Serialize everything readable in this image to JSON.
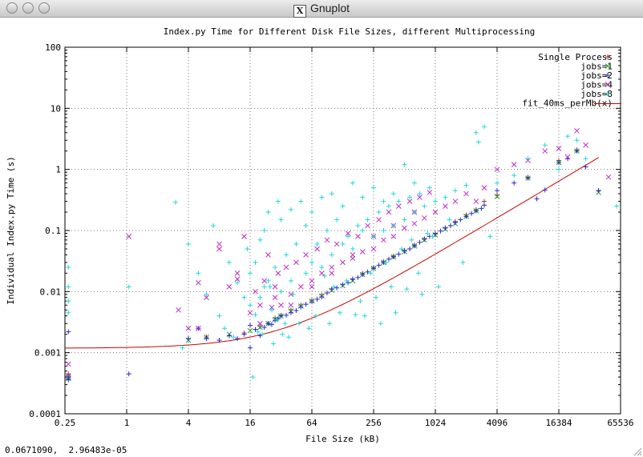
{
  "window": {
    "title": "Gnuplot",
    "icon": "x11-icon"
  },
  "status": {
    "coords": "0.0671090,  2.96483e-05"
  },
  "chart_data": {
    "type": "scatter",
    "title": "Index.py Time for Different Disk File Sizes, different Multiprocessing",
    "xlabel": "File Size (kB)",
    "ylabel": "Individual Index.py Time (s)",
    "xscale": "log",
    "yscale": "log",
    "xlim": [
      0.25,
      65536
    ],
    "ylim": [
      0.0001,
      100
    ],
    "grid": true,
    "legend": "top-right",
    "xticks": [
      0.25,
      1,
      4,
      16,
      64,
      256,
      1024,
      4096,
      16384,
      65536
    ],
    "xtick_labels": [
      "0.25",
      "1",
      "4",
      "16",
      "64",
      "256",
      "1024",
      "4096",
      "16384",
      "65536"
    ],
    "yticks": [
      0.0001,
      0.001,
      0.01,
      0.1,
      1,
      10,
      100
    ],
    "ytick_labels": [
      "0.0001",
      "0.001",
      "0.01",
      "0.1",
      "1",
      "10",
      "100"
    ],
    "series": [
      {
        "name": "Single Process",
        "marker": "plus",
        "color": "#c0302a",
        "x": [
          0.27,
          0.27,
          4,
          6,
          10,
          14,
          18,
          20,
          24,
          28,
          32,
          40,
          50,
          64,
          80,
          100,
          128,
          160,
          200,
          256,
          320,
          400,
          512,
          640,
          800,
          1024,
          1280,
          1600,
          2048,
          2560,
          3072,
          4096,
          8192,
          16384,
          24576,
          40000
        ],
        "y": [
          0.0004,
          0.00045,
          0.0017,
          0.0018,
          0.0019,
          0.0021,
          0.0024,
          0.0027,
          0.003,
          0.0037,
          0.0041,
          0.005,
          0.006,
          0.0072,
          0.0088,
          0.011,
          0.013,
          0.016,
          0.02,
          0.025,
          0.031,
          0.038,
          0.047,
          0.058,
          0.073,
          0.09,
          0.11,
          0.14,
          0.18,
          0.22,
          0.3,
          0.38,
          0.75,
          1.4,
          2.1,
          0.45
        ]
      },
      {
        "name": "jobs=1",
        "marker": "x",
        "color": "#1fa02b",
        "x": [
          0.27,
          0.27,
          4,
          6,
          10,
          16,
          20,
          24,
          28,
          32,
          40,
          50,
          64,
          80,
          100,
          128,
          160,
          200,
          256,
          320,
          400,
          512,
          640,
          800,
          1024,
          1280,
          1600,
          2048,
          2560,
          4096,
          8192,
          16384,
          24576,
          40000
        ],
        "y": [
          0.00038,
          0.0004,
          0.0016,
          0.0018,
          0.002,
          0.0023,
          0.0026,
          0.003,
          0.0035,
          0.004,
          0.0048,
          0.0058,
          0.007,
          0.0085,
          0.0105,
          0.0125,
          0.015,
          0.019,
          0.024,
          0.03,
          0.037,
          0.045,
          0.056,
          0.07,
          0.085,
          0.105,
          0.13,
          0.17,
          0.21,
          0.36,
          0.72,
          1.3,
          2.0,
          0.42
        ]
      },
      {
        "name": "jobs=2",
        "marker": "plus",
        "color": "#2a2ad0",
        "x": [
          0.27,
          0.27,
          0.27,
          1.05,
          4,
          5,
          6,
          8,
          10,
          12,
          14,
          16,
          16,
          18,
          20,
          22,
          24,
          26,
          28,
          30,
          32,
          36,
          40,
          45,
          50,
          56,
          64,
          72,
          80,
          90,
          100,
          112,
          128,
          144,
          160,
          180,
          200,
          224,
          256,
          288,
          320,
          360,
          400,
          450,
          512,
          576,
          640,
          720,
          800,
          900,
          1024,
          1152,
          1280,
          1440,
          1600,
          1800,
          2048,
          2304,
          2560,
          2880,
          3072,
          4096,
          6000,
          8192,
          10000,
          12000,
          16384,
          20000,
          24576,
          30000,
          40000
        ],
        "y": [
          0.0004,
          0.00036,
          0.0022,
          0.00045,
          0.0017,
          0.0025,
          0.0017,
          0.0016,
          0.0019,
          0.0017,
          0.002,
          0.0012,
          0.0028,
          0.0024,
          0.0019,
          0.0026,
          0.003,
          0.0029,
          0.0034,
          0.0036,
          0.004,
          0.0041,
          0.0045,
          0.0049,
          0.0056,
          0.0062,
          0.0068,
          0.0075,
          0.0082,
          0.0095,
          0.011,
          0.0115,
          0.013,
          0.014,
          0.016,
          0.017,
          0.019,
          0.021,
          0.024,
          0.027,
          0.03,
          0.034,
          0.037,
          0.041,
          0.046,
          0.05,
          0.056,
          0.064,
          0.072,
          0.08,
          0.088,
          0.098,
          0.11,
          0.12,
          0.135,
          0.15,
          0.17,
          0.19,
          0.21,
          0.23,
          0.26,
          0.45,
          0.6,
          0.72,
          0.33,
          0.46,
          1.3,
          1.5,
          2.0,
          1.1,
          0.45
        ]
      },
      {
        "name": "jobs=4",
        "marker": "x",
        "color": "#c02cc8",
        "x": [
          0.27,
          0.27,
          1.05,
          3.2,
          4,
          5,
          6,
          8,
          10,
          12,
          14,
          16,
          18,
          20,
          22,
          24,
          26,
          28,
          30,
          32,
          36,
          40,
          45,
          50,
          56,
          64,
          72,
          80,
          90,
          100,
          112,
          128,
          144,
          160,
          180,
          200,
          224,
          256,
          288,
          320,
          360,
          400,
          450,
          512,
          576,
          640,
          720,
          800,
          900,
          1024,
          1280,
          1600,
          2048,
          2560,
          3072,
          4096,
          6000,
          8192,
          12000,
          16384,
          20000,
          24576,
          30000,
          50000,
          5,
          8,
          12,
          20,
          28,
          40,
          64,
          100,
          160,
          256,
          400,
          640
        ],
        "y": [
          0.00065,
          0.00042,
          0.08,
          0.005,
          0.0025,
          0.014,
          0.008,
          0.06,
          0.012,
          0.016,
          0.08,
          0.0045,
          0.01,
          0.006,
          0.015,
          0.04,
          0.0055,
          0.012,
          0.02,
          0.006,
          0.025,
          0.009,
          0.03,
          0.012,
          0.04,
          0.015,
          0.05,
          0.02,
          0.07,
          0.025,
          0.06,
          0.03,
          0.09,
          0.035,
          0.08,
          0.045,
          0.12,
          0.05,
          0.15,
          0.07,
          0.2,
          0.08,
          0.25,
          0.11,
          0.3,
          0.13,
          0.35,
          0.16,
          0.42,
          0.2,
          0.25,
          0.3,
          0.4,
          0.3,
          0.5,
          1.0,
          1.2,
          1.4,
          2.0,
          2.2,
          1.6,
          4.3,
          2.5,
          0.75,
          0.0025,
          0.05,
          0.02,
          0.003,
          0.008,
          0.006,
          0.012,
          0.02,
          0.04,
          0.08,
          0.12,
          0.2
        ]
      },
      {
        "name": "jobs=8",
        "marker": "plus",
        "color": "#22d8d8",
        "x": [
          0.27,
          0.27,
          0.27,
          0.27,
          1.05,
          3.0,
          4,
          5,
          6,
          7,
          8,
          10,
          12,
          14,
          16,
          16,
          18,
          18,
          20,
          20,
          22,
          22,
          24,
          24,
          26,
          28,
          30,
          32,
          32,
          36,
          40,
          40,
          45,
          50,
          56,
          56,
          64,
          64,
          72,
          80,
          80,
          90,
          100,
          100,
          112,
          128,
          128,
          144,
          160,
          160,
          180,
          200,
          200,
          224,
          256,
          256,
          288,
          320,
          320,
          360,
          400,
          400,
          450,
          512,
          512,
          576,
          640,
          640,
          720,
          800,
          900,
          1024,
          1280,
          1600,
          2048,
          2560,
          3072,
          4096,
          6000,
          8192,
          12000,
          16384,
          20000,
          24576,
          30000,
          60000,
          3.5,
          9,
          11,
          15,
          17,
          19,
          21,
          25,
          27,
          29,
          33,
          35,
          38,
          42,
          48,
          60,
          70,
          85,
          95,
          105,
          120,
          140,
          170,
          190,
          210,
          240,
          270,
          300,
          340,
          380,
          420,
          480,
          540,
          600,
          700,
          760,
          860,
          960,
          1100,
          1400,
          1900,
          2700,
          3500
        ],
        "y": [
          0.025,
          0.012,
          0.007,
          0.0045,
          0.012,
          0.29,
          0.06,
          0.02,
          0.009,
          0.12,
          0.004,
          0.03,
          0.014,
          0.008,
          0.006,
          0.02,
          0.0042,
          0.03,
          0.008,
          0.07,
          0.012,
          0.1,
          0.015,
          0.2,
          0.005,
          0.025,
          0.3,
          0.01,
          0.15,
          0.04,
          0.015,
          0.22,
          0.06,
          0.3,
          0.02,
          0.12,
          0.03,
          0.2,
          0.06,
          0.025,
          0.35,
          0.1,
          0.04,
          0.4,
          0.15,
          0.06,
          0.25,
          0.08,
          0.05,
          0.6,
          0.12,
          0.1,
          0.35,
          0.15,
          0.08,
          0.5,
          0.2,
          0.1,
          0.3,
          0.25,
          0.12,
          0.4,
          0.3,
          0.15,
          1.2,
          0.35,
          0.2,
          0.6,
          0.4,
          0.25,
          0.5,
          0.3,
          0.35,
          0.45,
          0.55,
          4.0,
          5.0,
          0.6,
          0.8,
          1.5,
          2.5,
          1.0,
          3.5,
          3.0,
          1.5,
          0.25,
          0.0012,
          0.0025,
          0.0018,
          0.05,
          0.0004,
          0.0022,
          0.002,
          0.012,
          0.0014,
          0.0035,
          0.002,
          0.003,
          0.0018,
          0.009,
          0.003,
          0.0025,
          0.004,
          0.018,
          0.003,
          0.012,
          0.0045,
          0.015,
          0.0042,
          0.007,
          0.004,
          0.02,
          0.008,
          0.003,
          0.03,
          0.012,
          0.0045,
          0.05,
          0.011,
          0.07,
          0.02,
          0.009,
          0.09,
          0.08,
          0.012,
          0.15,
          0.03,
          2.8,
          0.08
        ]
      },
      {
        "name": "fit_40ms_perMb(x)",
        "marker": "line",
        "color": "#cc0000",
        "fit": {
          "a": 0.00118,
          "b": 3.90625e-05
        }
      }
    ]
  }
}
